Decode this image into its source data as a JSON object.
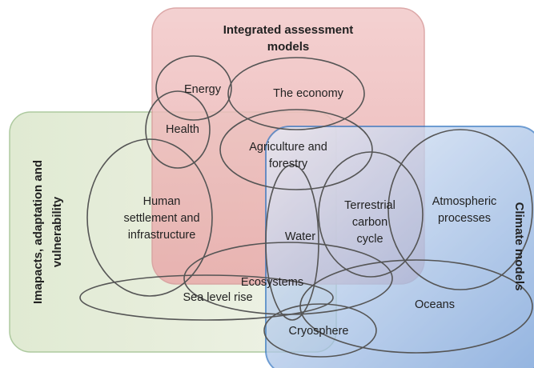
{
  "regions": [
    {
      "lines": [
        "Integrated assessment",
        "models"
      ]
    },
    {
      "lines": [
        "Imapacts, adaptation and",
        "vulnerability"
      ]
    },
    {
      "lines": [
        "Climate models"
      ]
    }
  ],
  "topics": [
    {
      "lines": [
        "Energy"
      ]
    },
    {
      "lines": [
        "The economy"
      ]
    },
    {
      "lines": [
        "Health"
      ]
    },
    {
      "lines": [
        "Agriculture and",
        "forestry"
      ]
    },
    {
      "lines": [
        "Human",
        "settlement and",
        "infrastructure"
      ]
    },
    {
      "lines": [
        "Water"
      ]
    },
    {
      "lines": [
        "Terrestrial",
        "carbon",
        "cycle"
      ]
    },
    {
      "lines": [
        "Atmospheric",
        "processes"
      ]
    },
    {
      "lines": [
        "Ecosystems"
      ]
    },
    {
      "lines": [
        "Sea level rise"
      ]
    },
    {
      "lines": [
        "Oceans"
      ]
    },
    {
      "lines": [
        "Cryosphere"
      ]
    }
  ]
}
